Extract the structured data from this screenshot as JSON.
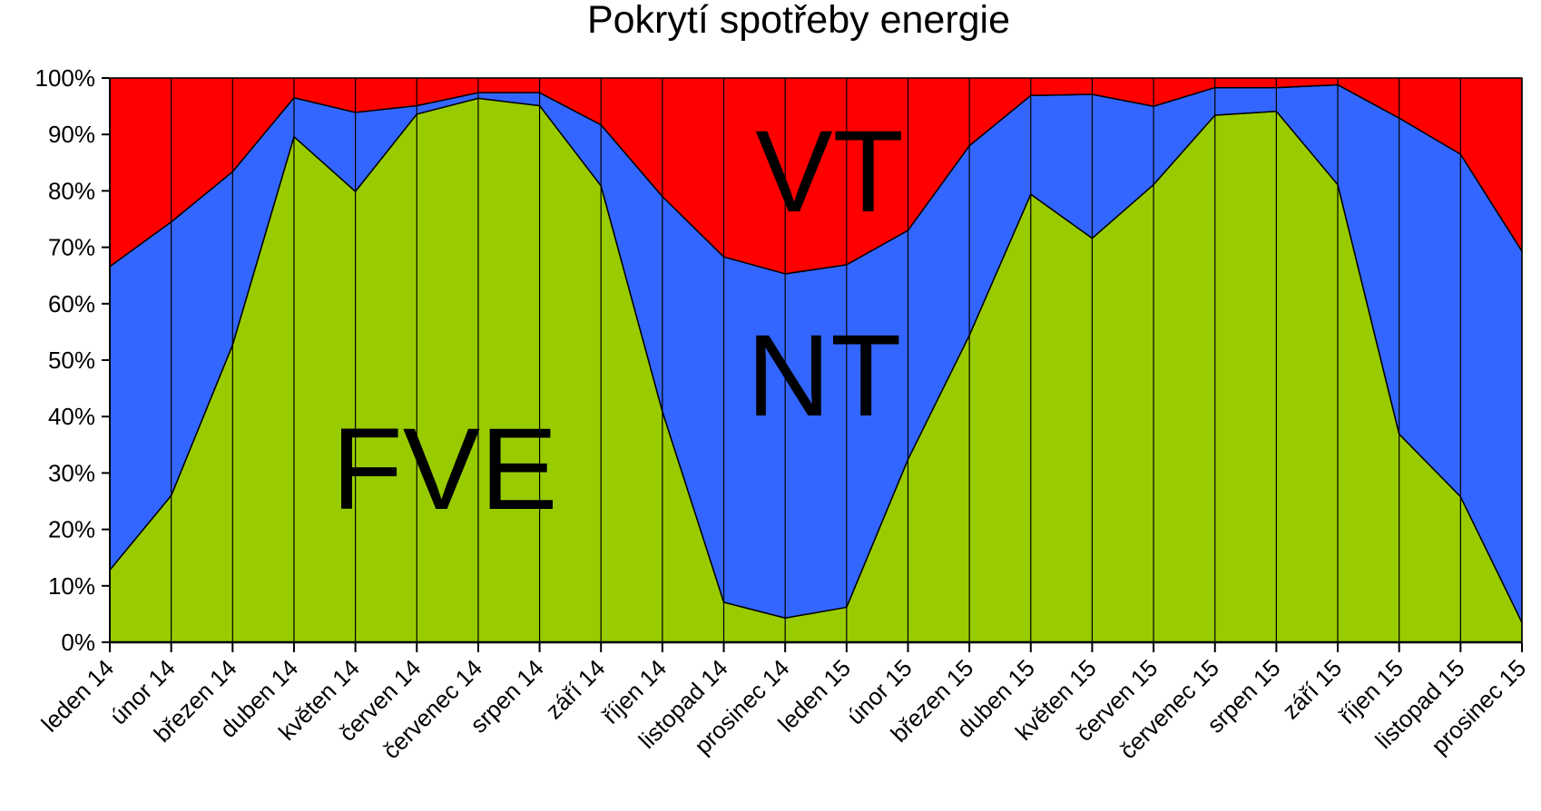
{
  "chart_data": {
    "type": "area",
    "stacked": true,
    "percent": true,
    "title": "Pokrytí spotřeby energie",
    "xlabel": "",
    "ylabel": "",
    "ylim": [
      0,
      100
    ],
    "yticks": [
      "0%",
      "10%",
      "20%",
      "30%",
      "40%",
      "50%",
      "60%",
      "70%",
      "80%",
      "90%",
      "100%"
    ],
    "grid": "vertical",
    "categories": [
      "leden 14",
      "únor 14",
      "březen 14",
      "duben 14",
      "květen 14",
      "červen 14",
      "červenec 14",
      "srpen 14",
      "září 14",
      "říjen 14",
      "listopad 14",
      "prosinec 14",
      "leden 15",
      "únor 15",
      "březen 15",
      "duben 15",
      "květen 15",
      "červen 15",
      "červenec 15",
      "srpen 15",
      "září 15",
      "říjen 15",
      "listopad 15",
      "prosinec 15"
    ],
    "series": [
      {
        "name": "FVE",
        "color": "#99cc00",
        "values": [
          12.8,
          26.0,
          52.7,
          89.6,
          79.9,
          93.6,
          96.4,
          95.1,
          80.9,
          40.9,
          7.1,
          4.3,
          6.2,
          32.4,
          54.4,
          79.4,
          71.6,
          81.1,
          93.4,
          94.1,
          81.1,
          36.9,
          25.8,
          3.5
        ]
      },
      {
        "name": "NT",
        "color": "#3366ff",
        "values": [
          53.8,
          48.5,
          30.7,
          6.9,
          14.0,
          1.5,
          1.0,
          2.3,
          10.8,
          38.1,
          61.2,
          61.0,
          60.7,
          40.6,
          33.6,
          17.5,
          25.5,
          13.9,
          4.9,
          4.2,
          17.7,
          56.0,
          60.7,
          65.8
        ]
      },
      {
        "name": "VT",
        "color": "#ff0000",
        "values": [
          33.4,
          25.5,
          16.6,
          3.5,
          6.1,
          4.9,
          2.6,
          2.6,
          8.3,
          21.0,
          31.7,
          34.7,
          33.1,
          27.0,
          12.0,
          3.1,
          2.9,
          5.0,
          1.7,
          1.7,
          1.2,
          7.1,
          13.5,
          30.7
        ]
      }
    ],
    "annotations": [
      "FVE",
      "NT",
      "VT"
    ],
    "legend": "none"
  }
}
